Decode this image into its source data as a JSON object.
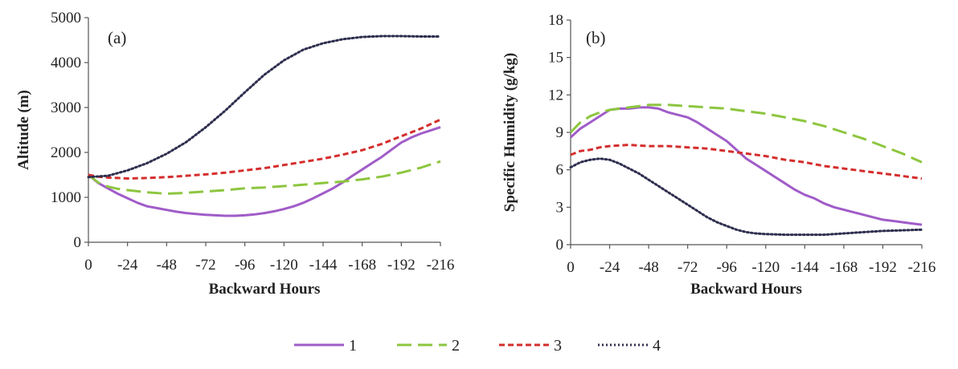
{
  "chart_data": [
    {
      "type": "line",
      "panel_label": "(a)",
      "xlabel": "Backward Hours",
      "ylabel": "Altitude (m)",
      "x_ticks": [
        0,
        -24,
        -48,
        -72,
        -96,
        -120,
        -144,
        -168,
        -192,
        -216
      ],
      "y_ticks": [
        0,
        1000,
        2000,
        3000,
        4000,
        5000
      ],
      "xlim": [
        0,
        -216
      ],
      "ylim": [
        0,
        5000
      ],
      "series": [
        {
          "name": "1",
          "x": [
            0,
            -6,
            -12,
            -18,
            -24,
            -30,
            -36,
            -42,
            -48,
            -54,
            -60,
            -66,
            -72,
            -78,
            -84,
            -90,
            -96,
            -102,
            -108,
            -114,
            -120,
            -126,
            -132,
            -138,
            -144,
            -150,
            -156,
            -162,
            -168,
            -174,
            -180,
            -186,
            -192,
            -198,
            -204,
            -210,
            -216
          ],
          "y": [
            1500,
            1320,
            1200,
            1080,
            980,
            880,
            800,
            760,
            720,
            680,
            650,
            630,
            610,
            600,
            590,
            590,
            600,
            620,
            650,
            690,
            740,
            800,
            880,
            980,
            1090,
            1200,
            1330,
            1480,
            1620,
            1760,
            1900,
            2060,
            2220,
            2330,
            2420,
            2490,
            2560
          ]
        },
        {
          "name": "2",
          "x": [
            0,
            -6,
            -12,
            -18,
            -24,
            -36,
            -48,
            -60,
            -72,
            -84,
            -96,
            -108,
            -120,
            -132,
            -144,
            -156,
            -168,
            -180,
            -192,
            -204,
            -216
          ],
          "y": [
            1500,
            1330,
            1240,
            1190,
            1160,
            1110,
            1080,
            1100,
            1130,
            1160,
            1200,
            1220,
            1250,
            1280,
            1320,
            1350,
            1400,
            1460,
            1550,
            1660,
            1800
          ]
        },
        {
          "name": "3",
          "x": [
            0,
            -6,
            -12,
            -18,
            -24,
            -36,
            -48,
            -60,
            -72,
            -84,
            -96,
            -108,
            -120,
            -132,
            -144,
            -156,
            -168,
            -180,
            -192,
            -204,
            -216
          ],
          "y": [
            1500,
            1460,
            1440,
            1430,
            1420,
            1430,
            1450,
            1480,
            1510,
            1550,
            1600,
            1650,
            1720,
            1790,
            1860,
            1950,
            2050,
            2190,
            2360,
            2530,
            2730
          ]
        },
        {
          "name": "4",
          "x": [
            0,
            -12,
            -24,
            -36,
            -48,
            -60,
            -72,
            -84,
            -96,
            -108,
            -120,
            -132,
            -144,
            -156,
            -168,
            -180,
            -192,
            -204,
            -216
          ],
          "y": [
            1450,
            1480,
            1600,
            1760,
            1970,
            2230,
            2560,
            2930,
            3340,
            3730,
            4050,
            4290,
            4430,
            4520,
            4570,
            4590,
            4590,
            4580,
            4580
          ]
        }
      ]
    },
    {
      "type": "line",
      "panel_label": "(b)",
      "xlabel": "Backward Hours",
      "ylabel": "Specific Humidity (g/kg)",
      "x_ticks": [
        0,
        -24,
        -48,
        -72,
        -96,
        -120,
        -144,
        -168,
        -192,
        -216
      ],
      "y_ticks": [
        0,
        3,
        6,
        9,
        12,
        15,
        18
      ],
      "xlim": [
        0,
        -216
      ],
      "ylim": [
        0,
        18
      ],
      "series": [
        {
          "name": "1",
          "x": [
            0,
            -6,
            -12,
            -18,
            -24,
            -30,
            -36,
            -42,
            -48,
            -54,
            -60,
            -66,
            -72,
            -78,
            -84,
            -90,
            -96,
            -102,
            -108,
            -114,
            -120,
            -126,
            -132,
            -138,
            -144,
            -150,
            -156,
            -162,
            -168,
            -174,
            -180,
            -186,
            -192,
            -198,
            -204,
            -210,
            -216
          ],
          "y": [
            8.6,
            9.3,
            9.8,
            10.3,
            10.8,
            10.9,
            10.9,
            11.0,
            11.0,
            10.9,
            10.6,
            10.4,
            10.2,
            9.8,
            9.3,
            8.8,
            8.3,
            7.6,
            6.9,
            6.4,
            5.9,
            5.4,
            4.9,
            4.4,
            4.0,
            3.7,
            3.3,
            3.0,
            2.8,
            2.6,
            2.4,
            2.2,
            2.0,
            1.9,
            1.8,
            1.7,
            1.6
          ]
        },
        {
          "name": "2",
          "x": [
            0,
            -6,
            -12,
            -18,
            -24,
            -36,
            -48,
            -60,
            -72,
            -84,
            -96,
            -108,
            -120,
            -132,
            -144,
            -156,
            -168,
            -180,
            -192,
            -204,
            -216
          ],
          "y": [
            9.0,
            9.8,
            10.3,
            10.6,
            10.8,
            11.0,
            11.2,
            11.2,
            11.1,
            11.0,
            10.9,
            10.7,
            10.5,
            10.2,
            9.9,
            9.5,
            9.0,
            8.5,
            7.9,
            7.3,
            6.6
          ]
        },
        {
          "name": "3",
          "x": [
            0,
            -6,
            -12,
            -18,
            -24,
            -36,
            -48,
            -60,
            -72,
            -84,
            -96,
            -108,
            -120,
            -132,
            -144,
            -156,
            -168,
            -180,
            -192,
            -204,
            -216
          ],
          "y": [
            7.2,
            7.5,
            7.6,
            7.8,
            7.9,
            8.0,
            7.9,
            7.9,
            7.8,
            7.7,
            7.5,
            7.3,
            7.1,
            6.8,
            6.6,
            6.3,
            6.1,
            5.9,
            5.7,
            5.5,
            5.3
          ]
        },
        {
          "name": "4",
          "x": [
            0,
            -6,
            -12,
            -18,
            -24,
            -30,
            -36,
            -42,
            -48,
            -54,
            -60,
            -66,
            -72,
            -78,
            -84,
            -90,
            -96,
            -102,
            -108,
            -114,
            -120,
            -132,
            -144,
            -156,
            -168,
            -180,
            -192,
            -204,
            -216
          ],
          "y": [
            6.2,
            6.6,
            6.8,
            6.9,
            6.8,
            6.5,
            6.1,
            5.7,
            5.2,
            4.7,
            4.2,
            3.7,
            3.2,
            2.7,
            2.2,
            1.8,
            1.5,
            1.2,
            1.0,
            0.9,
            0.85,
            0.8,
            0.8,
            0.8,
            0.9,
            1.0,
            1.1,
            1.15,
            1.2
          ]
        }
      ]
    }
  ],
  "legend": {
    "entries": [
      "1",
      "2",
      "3",
      "4"
    ]
  },
  "series_styles": {
    "1": {
      "color": "#a05cc8",
      "dash": "none",
      "width": 3
    },
    "2": {
      "color": "#8dc63f",
      "dash": "18,8",
      "width": 3
    },
    "3": {
      "color": "#d42e2e",
      "dash": "7,4",
      "width": 3
    },
    "4": {
      "color": "#2e2e4f",
      "dash": "2,3",
      "width": 3
    }
  }
}
